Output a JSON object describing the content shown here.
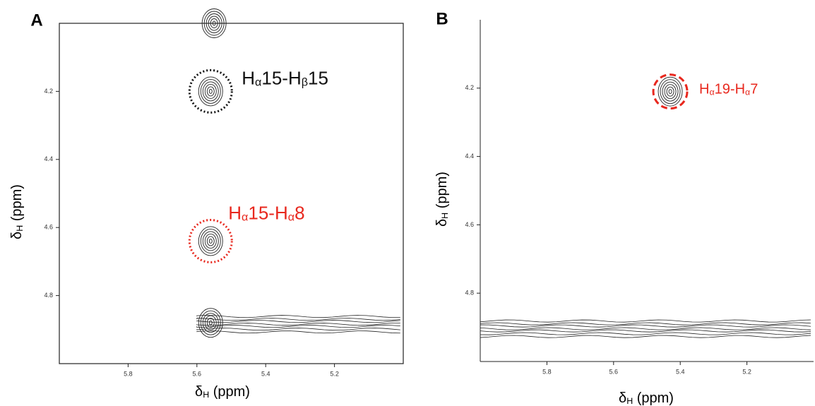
{
  "chart_data": [
    {
      "type": "contour",
      "panel": "A",
      "xlabel": [
        "δ",
        "H",
        " (ppm)"
      ],
      "ylabel": [
        "δ",
        "H",
        " (ppm)"
      ],
      "xlim": [
        6.0,
        5.0
      ],
      "ylim": [
        4.0,
        5.0
      ],
      "xticks": [
        5.8,
        5.6,
        5.4,
        5.2
      ],
      "yticks": [
        4.2,
        4.4,
        4.6,
        4.8
      ],
      "box": true,
      "peaks": [
        {
          "x": 5.56,
          "y": 4.2,
          "label": [
            "H",
            "α",
            "15-H",
            "β",
            "15"
          ],
          "color": "#111111",
          "circle": "dotted"
        },
        {
          "x": 5.56,
          "y": 4.64,
          "label": [
            "H",
            "α",
            "15-H",
            "α",
            "8"
          ],
          "color": "#e8281e",
          "circle": "dotted"
        },
        {
          "x": 5.56,
          "y": 4.88
        },
        {
          "x": 5.55,
          "y": 4.0
        }
      ],
      "ridge": {
        "x": [
          5.6,
          4.99
        ],
        "y": 4.88
      }
    },
    {
      "type": "contour",
      "panel": "B",
      "xlabel": [
        "δ",
        "H",
        " (ppm)"
      ],
      "ylabel": [
        "δ",
        "H",
        " (ppm)"
      ],
      "xlim": [
        6.0,
        5.0
      ],
      "ylim": [
        4.0,
        5.0
      ],
      "xticks": [
        5.8,
        5.6,
        5.4,
        5.2
      ],
      "yticks": [
        4.2,
        4.4,
        4.6,
        4.8
      ],
      "box": false,
      "peaks": [
        {
          "x": 5.43,
          "y": 4.21,
          "label": [
            "H",
            "α",
            "19-H",
            "α",
            "7"
          ],
          "color": "#e8281e",
          "circle": "dashed"
        }
      ],
      "ridge": {
        "x": [
          6.0,
          5.0
        ],
        "y": 4.9
      }
    }
  ]
}
